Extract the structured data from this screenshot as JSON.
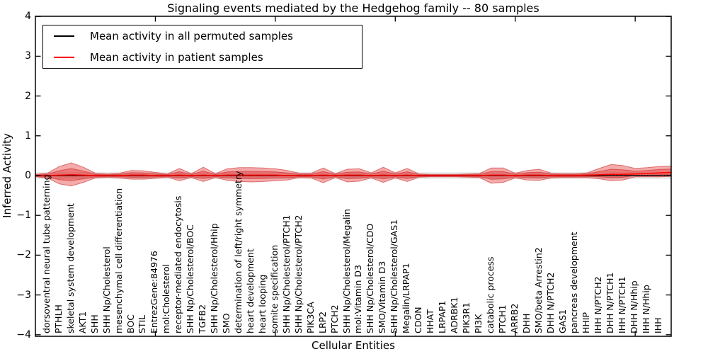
{
  "chart_data": {
    "type": "area",
    "title": "Signaling events mediated by the Hedgehog family -- 80 samples",
    "xlabel": "Cellular Entities",
    "ylabel": "Inferred Activity",
    "ylim": [
      -4,
      4
    ],
    "y_ticks": [
      4,
      3,
      2,
      1,
      0,
      -1,
      -2,
      -3,
      -4
    ],
    "x_major_tick_positions": [
      10,
      20,
      30,
      40,
      50
    ],
    "grid": false,
    "legend": {
      "position": "upper left",
      "entries": [
        {
          "label": "Mean activity in all permuted samples",
          "color": "#000000"
        },
        {
          "label": "Mean activity in patient samples",
          "color": "#ff0000"
        }
      ]
    },
    "categories": [
      "dorsoventral neural tube patterning",
      "PTHLH",
      "skeletal system development",
      "AKT1",
      "SHH",
      "SHH Np/Cholesterol",
      "mesenchymal cell differentiation",
      "BOC",
      "STIL",
      "EntrezGene:84976",
      "mol:Cholesterol",
      "receptor-mediated endocytosis",
      "SHH Np/Cholesterol/BOC",
      "TGFB2",
      "SHH Np/Cholesterol/Hhip",
      "SMO",
      "determination of left/right symmetry",
      "heart development",
      "heart looping",
      "somite specification",
      "SHH Np/Cholesterol/PTCH1",
      "SHH Np/Cholesterol/PTCH2",
      "PIK3CA",
      "LRP2",
      "PTCH2",
      "SHH Np/Cholesterol/Megalin",
      "mol:Vitamin D3",
      "SHH Np/Cholesterol/CDO",
      "SMO/Vitamin D3",
      "SHH Np/Cholesterol/GAS1",
      "Megalin/LRPAP1",
      "CDON",
      "HHAT",
      "LRPAP1",
      "ADRBK1",
      "PIK3R1",
      "PI3K",
      "catabolic process",
      "PTCH1",
      "ARRB2",
      "DHH",
      "SMO/beta Arrestin2",
      "DHH N/PTCH2",
      "GAS1",
      "pancreas development",
      "HHIP",
      "IHH N/PTCH2",
      "DHH N/PTCH1",
      "IHH N/PTCH1",
      "DHH N/Hhip",
      "IHH N/Hhip",
      "IHH"
    ],
    "series": [
      {
        "name": "Mean activity in all permuted samples",
        "color": "#000000",
        "constant": 0
      },
      {
        "name": "Mean activity in patient samples",
        "color": "#ff0000",
        "values": [
          0.0,
          0.01,
          0.02,
          0.01,
          0.0,
          0.0,
          0.0,
          0.01,
          0.01,
          0.0,
          0.0,
          0.01,
          0.0,
          0.01,
          0.0,
          0.01,
          0.01,
          0.01,
          0.01,
          0.01,
          0.0,
          0.0,
          0.0,
          0.01,
          0.0,
          0.01,
          0.01,
          0.0,
          0.01,
          0.0,
          0.01,
          0.0,
          0.0,
          0.0,
          0.0,
          0.0,
          0.0,
          0.01,
          0.01,
          0.0,
          0.01,
          0.01,
          0.0,
          0.0,
          0.0,
          0.01,
          0.02,
          0.03,
          0.03,
          0.04,
          0.05,
          0.07
        ]
      }
    ],
    "patient_band": {
      "upper": [
        0.06,
        0.22,
        0.3,
        0.2,
        0.06,
        0.04,
        0.06,
        0.12,
        0.11,
        0.08,
        0.04,
        0.17,
        0.05,
        0.2,
        0.05,
        0.16,
        0.19,
        0.19,
        0.18,
        0.16,
        0.13,
        0.06,
        0.06,
        0.18,
        0.05,
        0.15,
        0.16,
        0.07,
        0.2,
        0.07,
        0.17,
        0.04,
        0.03,
        0.03,
        0.03,
        0.04,
        0.05,
        0.18,
        0.18,
        0.06,
        0.12,
        0.15,
        0.06,
        0.05,
        0.05,
        0.06,
        0.16,
        0.25,
        0.22,
        0.14,
        0.15,
        0.16
      ],
      "lower": [
        0.06,
        0.22,
        0.28,
        0.18,
        0.06,
        0.04,
        0.06,
        0.1,
        0.1,
        0.07,
        0.04,
        0.14,
        0.05,
        0.16,
        0.05,
        0.13,
        0.16,
        0.17,
        0.16,
        0.14,
        0.11,
        0.05,
        0.06,
        0.19,
        0.05,
        0.17,
        0.15,
        0.06,
        0.18,
        0.06,
        0.16,
        0.04,
        0.03,
        0.03,
        0.03,
        0.04,
        0.05,
        0.2,
        0.18,
        0.06,
        0.12,
        0.13,
        0.06,
        0.05,
        0.05,
        0.06,
        0.1,
        0.16,
        0.14,
        0.07,
        0.08,
        0.1
      ],
      "inner_ratio": 0.52,
      "edge_start": 0.03,
      "edge_end_mean": 0.08
    },
    "permuted_band": {
      "half_width": 0.085
    },
    "colors": {
      "band_fill": "rgba(225,35,35,0.38)",
      "band_edge": "rgba(205,40,40,0.6)",
      "permuted_band_fill": "rgba(80,80,80,0.13)",
      "zero_line": "#000000",
      "patient_line": "#ff0000",
      "permuted_line": "#000000",
      "axis": "#000000"
    }
  }
}
